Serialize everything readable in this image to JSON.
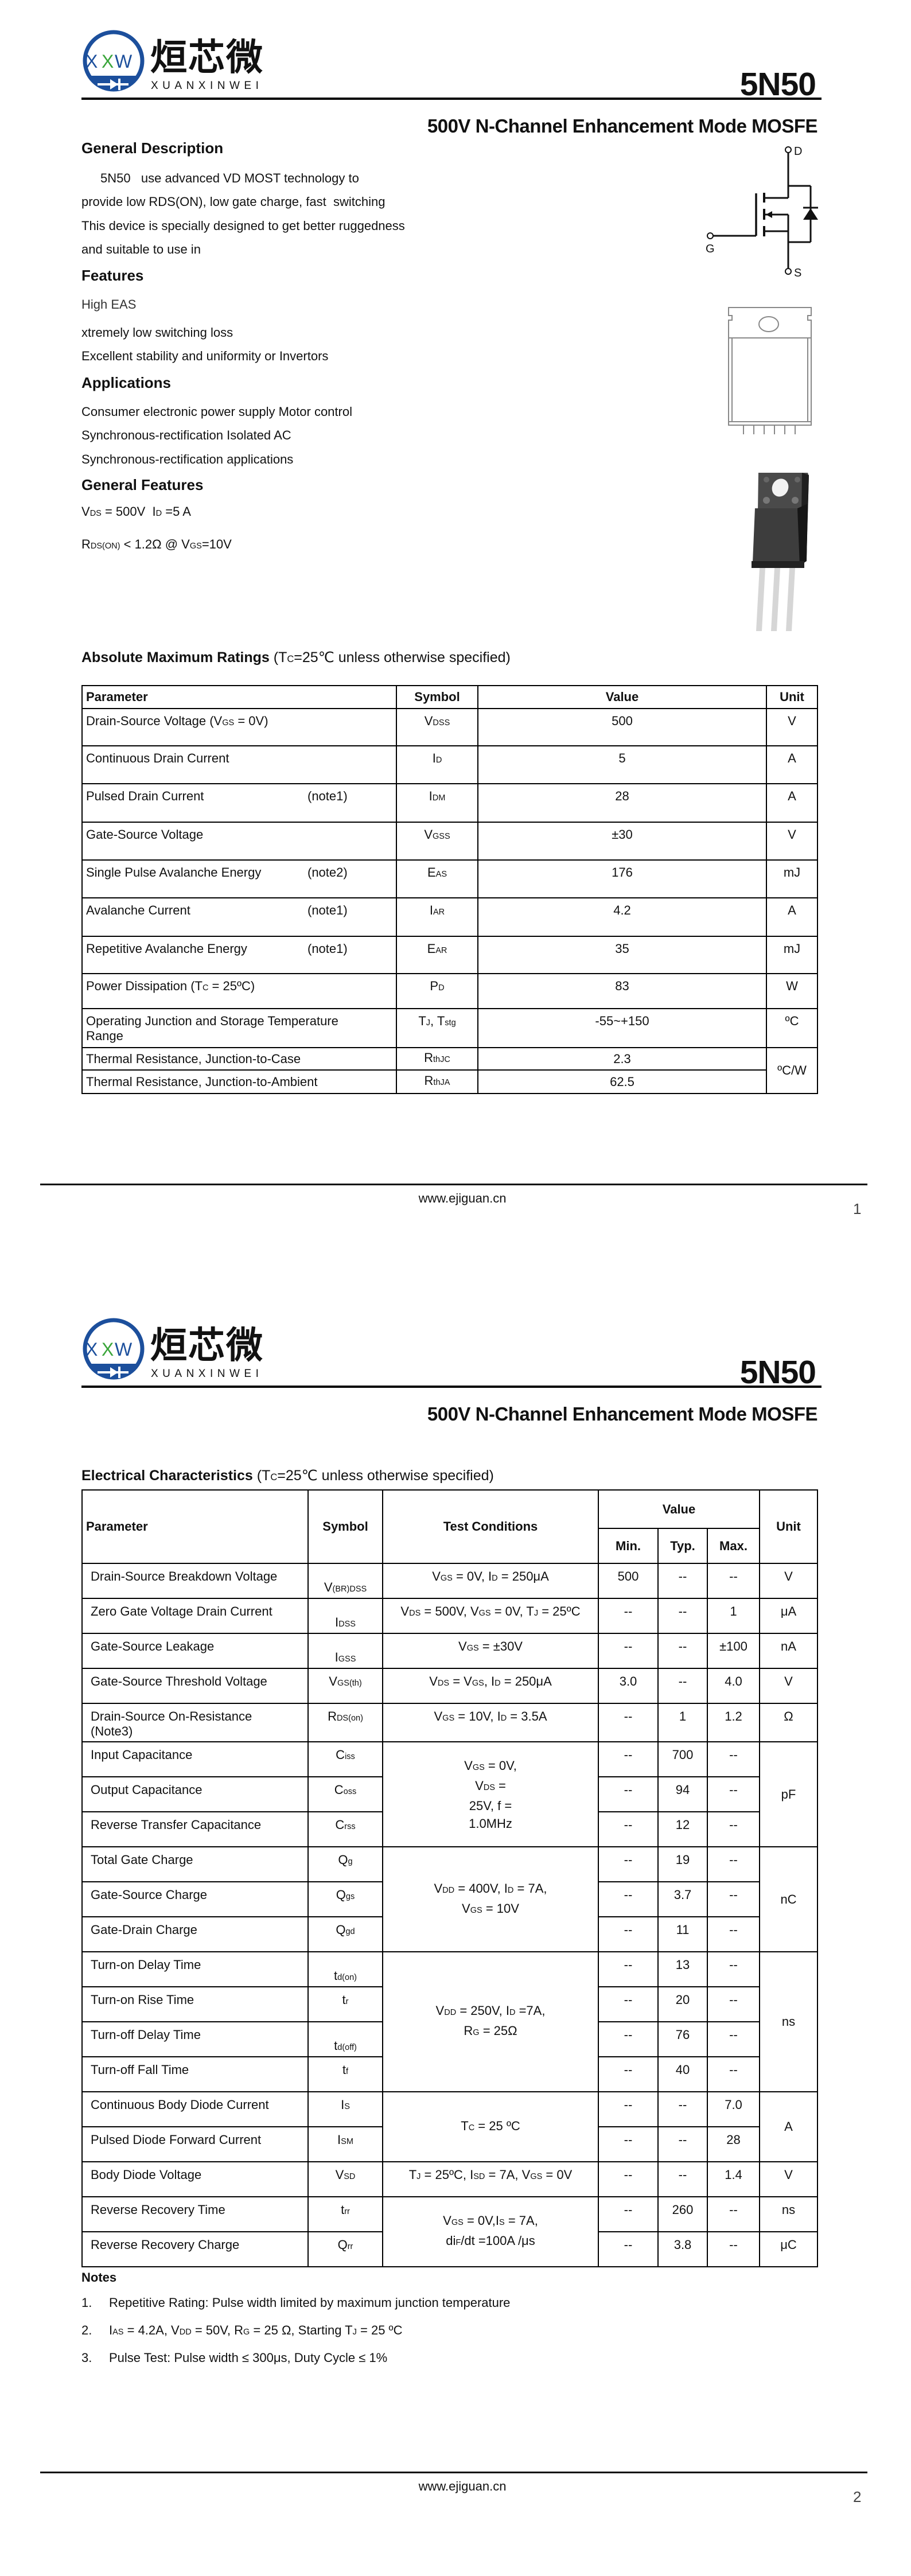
{
  "header": {
    "logo_cn": "烜芯微",
    "logo_en": "XUANXINWEI",
    "logo_mark_letters": [
      "X",
      "X",
      "W"
    ],
    "part_number": "5N50",
    "subtitle": "500V N-Channel Enhancement Mode MOSFE"
  },
  "colors": {
    "logo_blue": "#1c4f9c",
    "logo_green": "#3aa53a",
    "text": "#111111",
    "rule": "#000000"
  },
  "page1": {
    "general_description": {
      "heading": "General Description",
      "lines": [
        "5N50   use advanced VD MOST technology to",
        "provide low RDS(ON), low gate charge, fast  switching",
        "This device is specially designed to get better ruggedness",
        "and suitable to use in"
      ]
    },
    "features": {
      "heading": "Features",
      "items": [
        "High EAS",
        "xtremely low switching loss",
        "Excellent stability and uniformity or Invertors"
      ]
    },
    "applications": {
      "heading": "Applications",
      "items": [
        "Consumer electronic power supply Motor control",
        "Synchronous-rectification Isolated AC",
        "Synchronous-rectification applications"
      ]
    },
    "general_features": {
      "heading": "General Features",
      "vds_id": [
        "V",
        "DS",
        " = 500V  I",
        "D",
        " =5 A"
      ],
      "rds_on": [
        "R",
        "DS(ON)",
        " < 1.2Ω @ V",
        "GS",
        "=10V"
      ]
    },
    "schematic": {
      "drain": "D",
      "gate": "G",
      "source": "S"
    },
    "amr": {
      "title_bold": "Absolute Maximum Ratings",
      "title_rest": [
        " (T",
        "C",
        "=25℃ unless otherwise specified)"
      ],
      "headers": {
        "parameter": "Parameter",
        "symbol": "Symbol",
        "value": "Value",
        "unit": "Unit"
      },
      "rows": [
        {
          "param": [
            "Drain-Source Voltage (V",
            "GS",
            " = 0V)"
          ],
          "symbol": [
            "V",
            "DSS"
          ],
          "value": "500",
          "unit": "V"
        },
        {
          "param": [
            "Continuous Drain Current"
          ],
          "symbol": [
            "I",
            "D"
          ],
          "value": "5",
          "unit": "A"
        },
        {
          "param": [
            "Pulsed Drain Current"
          ],
          "note": "(note1)",
          "symbol": [
            "I",
            "DM"
          ],
          "value": "28",
          "unit": "A"
        },
        {
          "param": [
            "Gate-Source Voltage"
          ],
          "symbol": [
            "V",
            "GSS"
          ],
          "value": "±30",
          "unit": "V"
        },
        {
          "param": [
            "Single Pulse Avalanche Energy"
          ],
          "note": "(note2)",
          "symbol": [
            "E",
            "AS"
          ],
          "value": "176",
          "unit": "mJ"
        },
        {
          "param": [
            "Avalanche Current"
          ],
          "note": "(note1)",
          "symbol": [
            "I",
            "AR"
          ],
          "value": "4.2",
          "unit": "A"
        },
        {
          "param": [
            "Repetitive Avalanche Energy"
          ],
          "note": "(note1)",
          "symbol": [
            "E",
            "AR"
          ],
          "value": "35",
          "unit": "mJ"
        },
        {
          "param": [
            "Power Dissipation (T",
            "C",
            " = 25ºC)"
          ],
          "symbol": [
            "P",
            "D"
          ],
          "value": "83",
          "unit": "W"
        },
        {
          "param": [
            "Operating Junction and Storage Temperature\nRange"
          ],
          "symbol": [
            "T",
            "J",
            ", T",
            "stg"
          ],
          "value": "-55~+150",
          "unit": "ºC"
        },
        {
          "param": [
            "Thermal Resistance, Junction-to-Case"
          ],
          "symbol": [
            "R",
            "thJC"
          ],
          "value": "2.3",
          "unit": "ºC/W",
          "unit_rows": 2
        },
        {
          "param": [
            "Thermal Resistance, Junction-to-Ambient"
          ],
          "symbol": [
            "R",
            "thJA"
          ],
          "value": "62.5"
        }
      ]
    },
    "footer": {
      "website": "www.ejiguan.cn",
      "page": "1"
    }
  },
  "page2": {
    "ec": {
      "title_bold": "Electrical Characteristics",
      "title_rest": [
        " (T",
        "C",
        "=25℃ unless otherwise specified)"
      ],
      "headers": {
        "parameter": "Parameter",
        "symbol": "Symbol",
        "test_conditions": "Test Conditions",
        "value": "Value",
        "min": "Min.",
        "typ": "Typ.",
        "max": "Max.",
        "unit": "Unit"
      },
      "rows": [
        {
          "param": "Drain-Source Breakdown Voltage",
          "symbol": [
            "V",
            "(BR)DSS"
          ],
          "cond": [
            [
              "V",
              "GS",
              " = 0V, I",
              "D",
              " = 250μA"
            ]
          ],
          "min": "500",
          "typ": "--",
          "max": "--",
          "unit": "V"
        },
        {
          "param": "Zero Gate Voltage Drain Current",
          "symbol": [
            "I",
            "DSS"
          ],
          "cond": [
            [
              "V",
              "DS",
              " = 500V, V",
              "GS",
              " = 0V, T",
              "J",
              " = 25ºC"
            ]
          ],
          "min": "--",
          "typ": "--",
          "max": "1",
          "unit": "μA"
        },
        {
          "param": "Gate-Source Leakage",
          "symbol": [
            "I",
            "GSS"
          ],
          "cond": [
            [
              "V",
              "GS",
              " = ±30V"
            ]
          ],
          "min": "--",
          "typ": "--",
          "max": "±100",
          "unit": "nA"
        },
        {
          "param": "Gate-Source Threshold Voltage",
          "symbol": [
            "V",
            "GS(th)"
          ],
          "cond": [
            [
              "V",
              "DS",
              " = V",
              "GS",
              ", I",
              "D",
              " =  250μA"
            ]
          ],
          "min": "3.0",
          "typ": "--",
          "max": "4.0",
          "unit": "V"
        },
        {
          "param": "Drain-Source On-Resistance\n(Note3)",
          "symbol": [
            "R",
            "DS(on)"
          ],
          "cond": [
            [
              "V",
              "GS",
              " = 10V, I",
              "D",
              " = 3.5A"
            ]
          ],
          "min": "--",
          "typ": "1",
          "max": "1.2",
          "unit": "Ω"
        },
        {
          "param": "Input Capacitance",
          "symbol": [
            "C",
            "iss"
          ],
          "cond": [
            [
              "V",
              "GS",
              " = 0V,"
            ],
            [
              "V",
              "DS",
              " ="
            ],
            [
              "25V, f ="
            ],
            [
              "1.0MHz"
            ]
          ],
          "cond_rows": 3,
          "min": "--",
          "typ": "700",
          "max": "--",
          "unit": "pF",
          "unit_rows": 3
        },
        {
          "param": "Output Capacitance",
          "symbol": [
            "C",
            "oss"
          ],
          "min": "--",
          "typ": "94",
          "max": "--"
        },
        {
          "param": "Reverse Transfer Capacitance",
          "symbol": [
            "C",
            "rss"
          ],
          "min": "--",
          "typ": "12",
          "max": "--"
        },
        {
          "param": "Total Gate Charge",
          "symbol": [
            "Q",
            "g"
          ],
          "cond": [
            [
              "V",
              "DD",
              " = 400V, I",
              "D",
              " = 7A,"
            ],
            [
              "V",
              "GS",
              " = 10V"
            ]
          ],
          "cond_rows": 3,
          "min": "--",
          "typ": "19",
          "max": "--",
          "unit": "nC",
          "unit_rows": 3
        },
        {
          "param": "Gate-Source Charge",
          "symbol": [
            "Q",
            "gs"
          ],
          "min": "--",
          "typ": "3.7",
          "max": "--"
        },
        {
          "param": "Gate-Drain Charge",
          "symbol": [
            "Q",
            "gd"
          ],
          "min": "--",
          "typ": "11",
          "max": "--"
        },
        {
          "param": "Turn-on Delay Time",
          "symbol": [
            "t",
            "d(on)"
          ],
          "cond": [
            [
              "V",
              "DD",
              " = 250V, I",
              "D",
              " =7A,"
            ],
            [
              "R",
              "G",
              " = 25Ω"
            ]
          ],
          "cond_rows": 4,
          "min": "--",
          "typ": "13",
          "max": "--",
          "unit": "ns",
          "unit_rows": 4
        },
        {
          "param": "Turn-on Rise Time",
          "symbol": [
            "t",
            "r"
          ],
          "min": "--",
          "typ": "20",
          "max": "--"
        },
        {
          "param": "Turn-off Delay Time",
          "symbol": [
            "t",
            "d(off)"
          ],
          "min": "--",
          "typ": "76",
          "max": "--"
        },
        {
          "param": "Turn-off Fall Time",
          "symbol": [
            "t",
            "f"
          ],
          "min": "--",
          "typ": "40",
          "max": "--"
        },
        {
          "param": "Continuous Body Diode Current",
          "symbol": [
            "I",
            "S"
          ],
          "cond": [
            [
              "T",
              "C",
              " = 25 ºC"
            ]
          ],
          "cond_rows": 2,
          "min": "--",
          "typ": "--",
          "max": "7.0",
          "unit": "A",
          "unit_rows": 2
        },
        {
          "param": "Pulsed Diode Forward Current",
          "symbol": [
            "I",
            "SM"
          ],
          "min": "--",
          "typ": "--",
          "max": "28"
        },
        {
          "param": "Body Diode Voltage",
          "symbol": [
            "V",
            "SD"
          ],
          "cond": [
            [
              "T",
              "J",
              " = 25ºC, I",
              "SD",
              " = 7A, V",
              "GS",
              " = 0V"
            ]
          ],
          "min": "--",
          "typ": "--",
          "max": "1.4",
          "unit": "V"
        },
        {
          "param": "Reverse Recovery Time",
          "symbol": [
            "t",
            "rr"
          ],
          "cond": [
            [
              "V",
              "GS",
              " = 0V,I",
              "S",
              " = 7A,"
            ],
            [
              "di",
              "F",
              "/dt =100A /μs"
            ]
          ],
          "cond_rows": 2,
          "min": "--",
          "typ": "260",
          "max": "--",
          "unit": "ns"
        },
        {
          "param": "Reverse Recovery Charge",
          "symbol": [
            "Q",
            "rr"
          ],
          "min": "--",
          "typ": "3.8",
          "max": "--",
          "unit": "μC"
        }
      ]
    },
    "notes": {
      "heading": "Notes",
      "items": [
        {
          "num": "1.",
          "text": [
            "Repetitive Rating: Pulse width limited by maximum junction temperature"
          ]
        },
        {
          "num": "2.",
          "text": [
            "I",
            "AS",
            " = 4.2A, V",
            "DD",
            " = 50V, R",
            "G",
            " = 25 Ω, Starting T",
            "J",
            " = 25 ºC"
          ]
        },
        {
          "num": "3.",
          "text": [
            "Pulse Test: Pulse width ≤ 300μs, Duty Cycle ≤ 1%"
          ]
        }
      ]
    },
    "footer": {
      "website": "www.ejiguan.cn",
      "page": "2"
    }
  }
}
